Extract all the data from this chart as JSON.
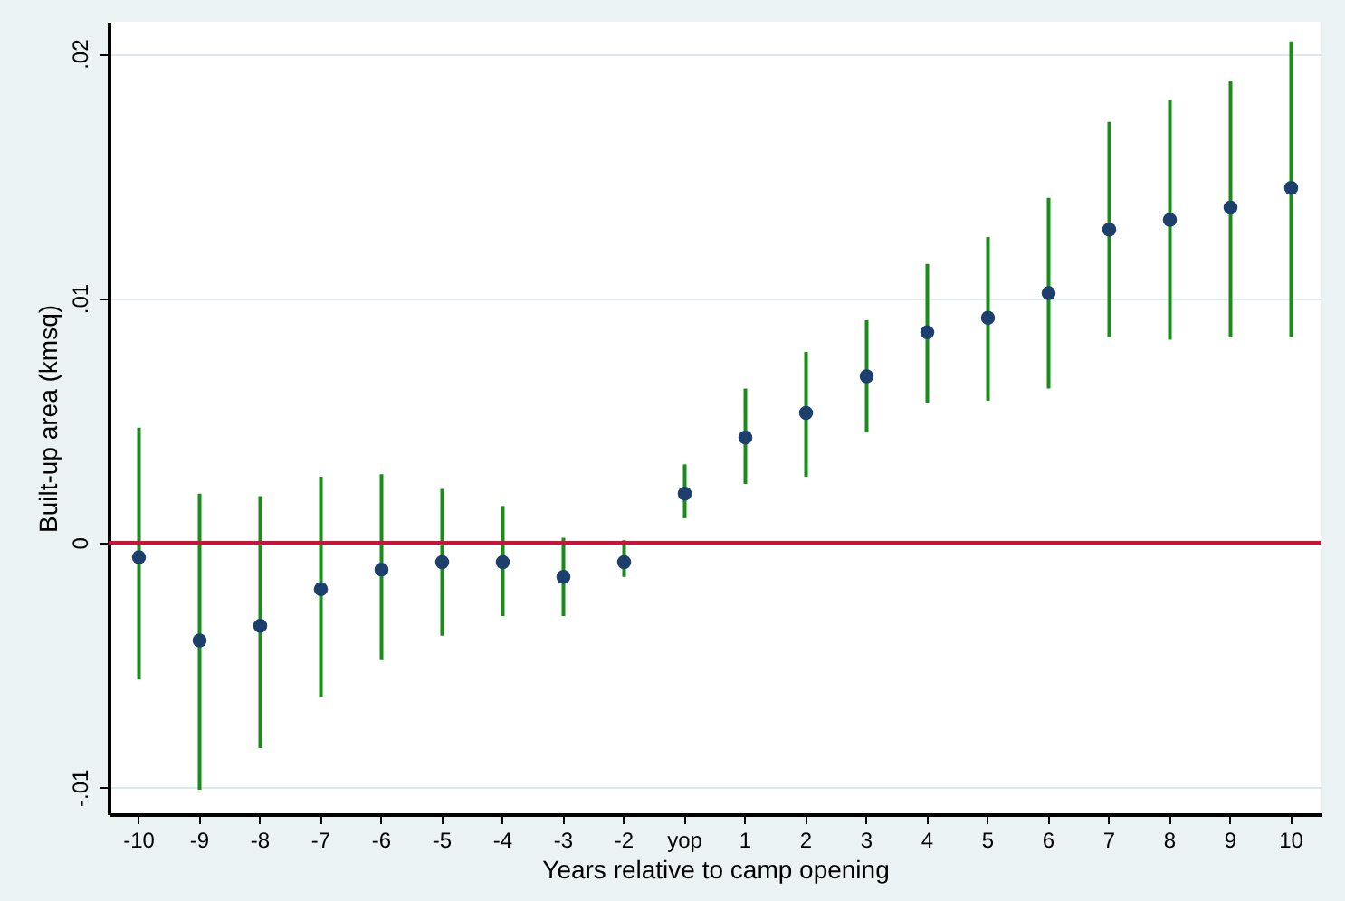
{
  "chart_data": {
    "type": "scatter",
    "xlabel": "Years relative to camp opening",
    "ylabel": "Built-up area (kmsq)",
    "categories": [
      "-10",
      "-9",
      "-8",
      "-7",
      "-6",
      "-5",
      "-4",
      "-3",
      "-2",
      "yop",
      "1",
      "2",
      "3",
      "4",
      "5",
      "6",
      "7",
      "8",
      "9",
      "10"
    ],
    "series": [
      {
        "color": "#1c3f6e",
        "values": [
          -0.0006,
          -0.004,
          -0.0034,
          -0.0019,
          -0.0011,
          -0.0008,
          -0.0008,
          -0.0014,
          -0.0008,
          0.002,
          0.0043,
          0.0053,
          0.0068,
          0.0086,
          0.0092,
          0.0102,
          0.0128,
          0.0132,
          0.0137,
          0.0145
        ],
        "errors": [
          [
            -0.0056,
            0.0047
          ],
          [
            -0.0101,
            0.002
          ],
          [
            -0.0084,
            0.0019
          ],
          [
            -0.0063,
            0.0027
          ],
          [
            -0.0048,
            0.0028
          ],
          [
            -0.0038,
            0.0022
          ],
          [
            -0.003,
            0.0015
          ],
          [
            -0.003,
            0.0002
          ],
          [
            -0.0014,
            0.0001
          ],
          [
            0.001,
            0.0032
          ],
          [
            0.0024,
            0.0063
          ],
          [
            0.0027,
            0.0078
          ],
          [
            0.0045,
            0.0091
          ],
          [
            0.0057,
            0.0114
          ],
          [
            0.0058,
            0.0125
          ],
          [
            0.0063,
            0.0141
          ],
          [
            0.0084,
            0.0172
          ],
          [
            0.0083,
            0.0181
          ],
          [
            0.0084,
            0.0189
          ],
          [
            0.0084,
            0.0205
          ]
        ]
      }
    ],
    "ylim": [
      -0.0111,
      0.0213
    ],
    "yticks": [
      {
        "value": -0.01,
        "label": "-.01"
      },
      {
        "value": 0,
        "label": "0"
      },
      {
        "value": 0.01,
        "label": ".01"
      },
      {
        "value": 0.02,
        "label": ".02"
      }
    ],
    "ref_lines": [
      {
        "axis": "y",
        "value": 0,
        "color": "#d0103a"
      }
    ],
    "grid": "y",
    "marker": "circle"
  }
}
